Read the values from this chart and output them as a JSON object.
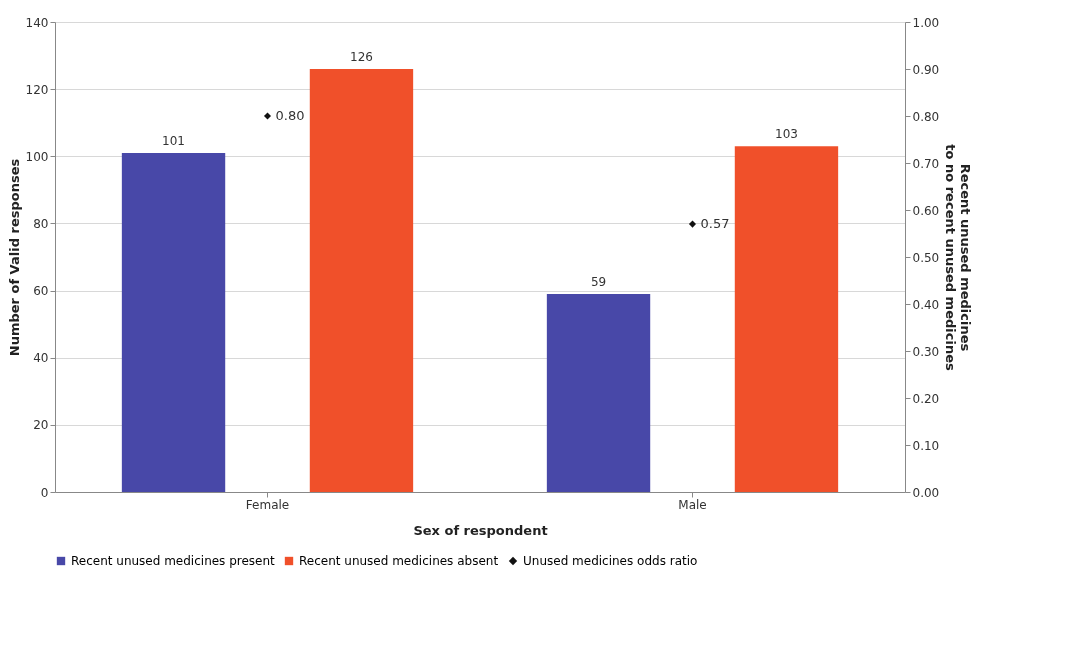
{
  "chart_data": {
    "type": "bar",
    "xlabel": "Sex of respondent",
    "ylabel": "Number of Valid responses",
    "y2label": "Recent unused medicines\nto no recent unused medicines",
    "categories": [
      "Female",
      "Male"
    ],
    "series": [
      {
        "name": "Recent unused medicines present",
        "color": "#4848a8",
        "values": [
          101,
          59
        ],
        "value_labels": [
          "101",
          "59"
        ]
      },
      {
        "name": "Recent unused medicines absent",
        "color": "#f0502a",
        "values": [
          126,
          103
        ],
        "value_labels": [
          "126",
          "103"
        ]
      },
      {
        "name": "Unused medicines odds ratio",
        "type": "scatter",
        "axis": "y2",
        "marker": "diamond",
        "color": "#111111",
        "values": [
          0.8,
          0.57
        ],
        "value_labels": [
          "0.80",
          "0.57"
        ]
      }
    ],
    "ylim": [
      0,
      140
    ],
    "yticks": [
      0,
      20,
      40,
      60,
      80,
      100,
      120,
      140
    ],
    "y2lim": [
      0,
      1
    ],
    "y2ticks": [
      {
        "value": 0,
        "label": "0.00"
      },
      {
        "value": 0.1,
        "label": "0.10"
      },
      {
        "value": 0.2,
        "label": "0.20"
      },
      {
        "value": 0.3,
        "label": "0.30"
      },
      {
        "value": 0.4,
        "label": "0.40"
      },
      {
        "value": 0.5,
        "label": "0.50"
      },
      {
        "value": 0.6,
        "label": "0.60"
      },
      {
        "value": 0.7,
        "label": "0.70"
      },
      {
        "value": 0.8,
        "label": "0.80"
      },
      {
        "value": 0.9,
        "label": "0.90"
      },
      {
        "value": 1,
        "label": "1.00"
      }
    ],
    "grid": "y",
    "legend": "bottom"
  }
}
